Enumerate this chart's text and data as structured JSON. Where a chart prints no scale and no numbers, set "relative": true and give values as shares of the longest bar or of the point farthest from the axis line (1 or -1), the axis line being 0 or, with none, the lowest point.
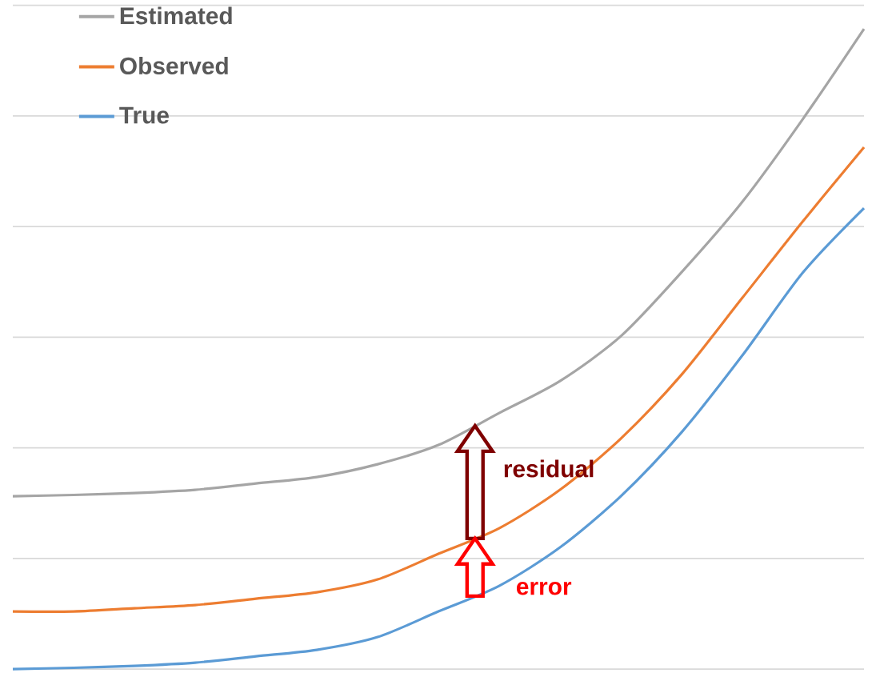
{
  "chart_data": {
    "type": "line",
    "relative": true,
    "grid": "y",
    "legend": "top left",
    "marker": "none",
    "line_style": "solid",
    "categories": [
      null,
      null,
      null,
      null,
      null,
      null,
      null,
      null,
      null,
      null,
      null,
      null,
      null,
      null,
      null
    ],
    "series": [
      {
        "name": "Estimated",
        "color": "#a5a5a5",
        "values": [
          0.27,
          0.272,
          0.275,
          0.28,
          0.29,
          0.3,
          0.32,
          0.35,
          0.4,
          0.45,
          0.52,
          0.62,
          0.73,
          0.86,
          1.0
        ]
      },
      {
        "name": "Observed",
        "color": "#ed7d31",
        "values": [
          0.09,
          0.09,
          0.095,
          0.1,
          0.11,
          0.12,
          0.14,
          0.18,
          0.22,
          0.28,
          0.36,
          0.46,
          0.58,
          0.7,
          0.815
        ]
      },
      {
        "name": "True",
        "color": "#5b9bd5",
        "values": [
          0,
          0.002,
          0.005,
          0.01,
          0.02,
          0.03,
          0.05,
          0.09,
          0.13,
          0.19,
          0.27,
          0.37,
          0.49,
          0.62,
          0.72
        ]
      }
    ],
    "annotations": [
      "residual",
      "error"
    ]
  }
}
